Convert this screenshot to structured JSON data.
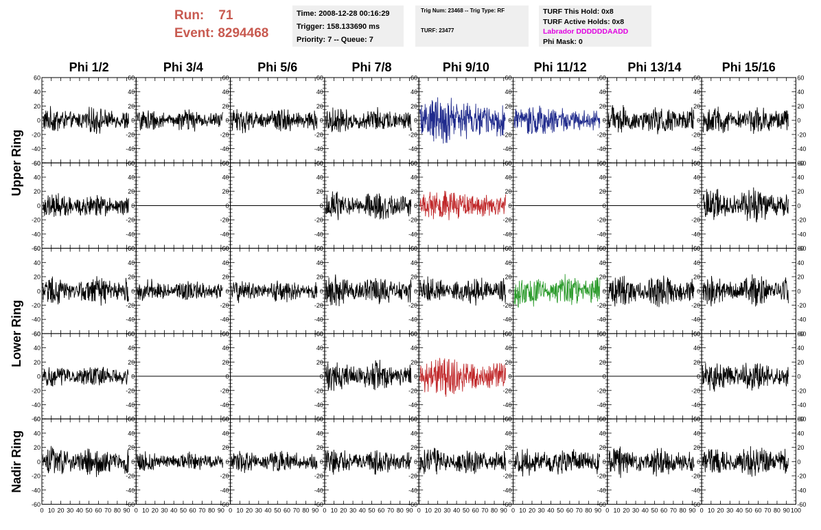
{
  "header": {
    "run_label": "Run:",
    "run_value": "71",
    "event_label": "Event:",
    "event_value": "8294468",
    "time_line": "Time: 2008-12-28 00:16:29",
    "trigger_line": "Trigger: 158.133690 ms",
    "priority_line": "Priority: 7 -- Queue: 7",
    "trig_line": "Trig Num: 23468 -- Trig Type: RF",
    "turf_line": "TURF: 23477",
    "turf_hold": "TURF This Hold: 0x8",
    "turf_active": "TURF Active Holds: 0x8",
    "labrador": "Labrador DDDDDDAADD",
    "phi_mask": "Phi Mask: 0"
  },
  "colors": {
    "header_red": "#c85a50",
    "labrador_magenta": "#e000e0",
    "trace_black": "#000000",
    "trace_blue": "#1f2a8c",
    "trace_red": "#c0282a",
    "trace_green": "#2a9a2a",
    "panel_fill_highlight": "#ffffff"
  },
  "chart_data": {
    "type": "line",
    "columns": [
      "Phi 1/2",
      "Phi 3/4",
      "Phi 5/6",
      "Phi 7/8",
      "Phi 9/10",
      "Phi 11/12",
      "Phi 13/14",
      "Phi 15/16"
    ],
    "rows": [
      "Upper Ring",
      "Lower Ring",
      "Nadir Ring"
    ],
    "ylim": [
      -60,
      60
    ],
    "xlim": [
      0,
      100
    ],
    "y_ticks": [
      "-60",
      "-40",
      "-20",
      "0",
      "20",
      "40",
      "60"
    ],
    "x_ticks": [
      "0",
      "10",
      "20",
      "30",
      "40",
      "50",
      "60",
      "70",
      "80",
      "90",
      "100"
    ],
    "x_tick_labels_printed": [
      "0",
      "10",
      "20",
      "30",
      "40",
      "50",
      "60",
      "70",
      "80",
      "90",
      "100"
    ],
    "panels": [
      {
        "row": 0,
        "col": 0,
        "color": "black",
        "amplitude": 14,
        "flat": false
      },
      {
        "row": 0,
        "col": 1,
        "color": "black",
        "amplitude": 12,
        "flat": false
      },
      {
        "row": 0,
        "col": 2,
        "color": "black",
        "amplitude": 13,
        "flat": false
      },
      {
        "row": 0,
        "col": 3,
        "color": "black",
        "amplitude": 14,
        "flat": false
      },
      {
        "row": 0,
        "col": 4,
        "color": "blue",
        "amplitude": 24,
        "flat": false
      },
      {
        "row": 0,
        "col": 5,
        "color": "blue",
        "amplitude": 16,
        "flat": false
      },
      {
        "row": 0,
        "col": 6,
        "color": "black",
        "amplitude": 16,
        "flat": false
      },
      {
        "row": 0,
        "col": 7,
        "color": "black",
        "amplitude": 16,
        "flat": false
      },
      {
        "row": 1,
        "col": 0,
        "color": "black",
        "amplitude": 14,
        "flat": false
      },
      {
        "row": 1,
        "col": 1,
        "color": "black",
        "amplitude": 0,
        "flat": true
      },
      {
        "row": 1,
        "col": 2,
        "color": "black",
        "amplitude": 0,
        "flat": true
      },
      {
        "row": 1,
        "col": 3,
        "color": "black",
        "amplitude": 16,
        "flat": false
      },
      {
        "row": 1,
        "col": 4,
        "color": "red",
        "amplitude": 16,
        "flat": false
      },
      {
        "row": 1,
        "col": 5,
        "color": "black",
        "amplitude": 0,
        "flat": true
      },
      {
        "row": 1,
        "col": 6,
        "color": "black",
        "amplitude": 0,
        "flat": true
      },
      {
        "row": 1,
        "col": 7,
        "color": "black",
        "amplitude": 18,
        "flat": false
      },
      {
        "row": 2,
        "col": 0,
        "color": "black",
        "amplitude": 16,
        "flat": false
      },
      {
        "row": 2,
        "col": 1,
        "color": "black",
        "amplitude": 12,
        "flat": false
      },
      {
        "row": 2,
        "col": 2,
        "color": "black",
        "amplitude": 12,
        "flat": false
      },
      {
        "row": 2,
        "col": 3,
        "color": "black",
        "amplitude": 16,
        "flat": false
      },
      {
        "row": 2,
        "col": 4,
        "color": "black",
        "amplitude": 16,
        "flat": false
      },
      {
        "row": 2,
        "col": 5,
        "color": "green",
        "amplitude": 18,
        "flat": false
      },
      {
        "row": 2,
        "col": 6,
        "color": "black",
        "amplitude": 18,
        "flat": false
      },
      {
        "row": 2,
        "col": 7,
        "color": "black",
        "amplitude": 16,
        "flat": false
      },
      {
        "row": 3,
        "col": 0,
        "color": "black",
        "amplitude": 12,
        "flat": false
      },
      {
        "row": 3,
        "col": 1,
        "color": "black",
        "amplitude": 0,
        "flat": true
      },
      {
        "row": 3,
        "col": 2,
        "color": "black",
        "amplitude": 0,
        "flat": true
      },
      {
        "row": 3,
        "col": 3,
        "color": "black",
        "amplitude": 16,
        "flat": false
      },
      {
        "row": 3,
        "col": 4,
        "color": "red",
        "amplitude": 20,
        "flat": false
      },
      {
        "row": 3,
        "col": 5,
        "color": "black",
        "amplitude": 0,
        "flat": true
      },
      {
        "row": 3,
        "col": 6,
        "color": "black",
        "amplitude": 0,
        "flat": true
      },
      {
        "row": 3,
        "col": 7,
        "color": "black",
        "amplitude": 16,
        "flat": false
      },
      {
        "row": 4,
        "col": 0,
        "color": "black",
        "amplitude": 16,
        "flat": false
      },
      {
        "row": 4,
        "col": 1,
        "color": "black",
        "amplitude": 11,
        "flat": false
      },
      {
        "row": 4,
        "col": 2,
        "color": "black",
        "amplitude": 12,
        "flat": false
      },
      {
        "row": 4,
        "col": 3,
        "color": "black",
        "amplitude": 14,
        "flat": false
      },
      {
        "row": 4,
        "col": 4,
        "color": "black",
        "amplitude": 15,
        "flat": false
      },
      {
        "row": 4,
        "col": 5,
        "color": "black",
        "amplitude": 16,
        "flat": false
      },
      {
        "row": 4,
        "col": 6,
        "color": "black",
        "amplitude": 16,
        "flat": false
      },
      {
        "row": 4,
        "col": 7,
        "color": "black",
        "amplitude": 16,
        "flat": false
      }
    ]
  }
}
